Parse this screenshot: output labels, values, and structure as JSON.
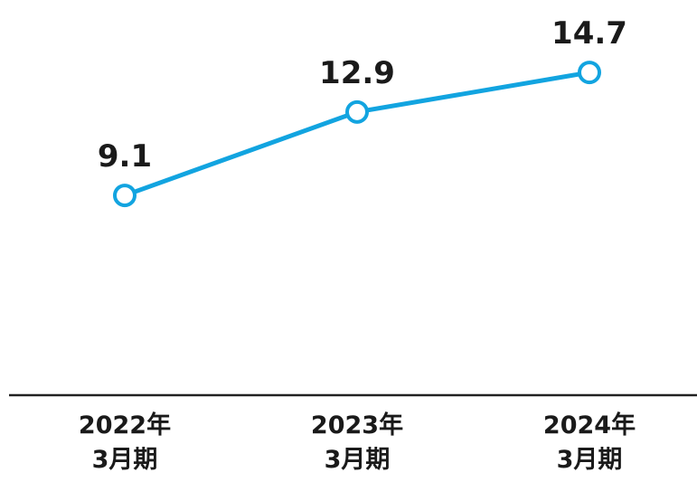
{
  "chart_data": {
    "type": "line",
    "categories": [
      "2022年\n3月期",
      "2023年\n3月期",
      "2024年\n3月期"
    ],
    "series": [
      {
        "color": "#12a4e0",
        "values": [
          9.1,
          12.9,
          14.7
        ]
      }
    ],
    "ylim": [
      0,
      18
    ]
  }
}
